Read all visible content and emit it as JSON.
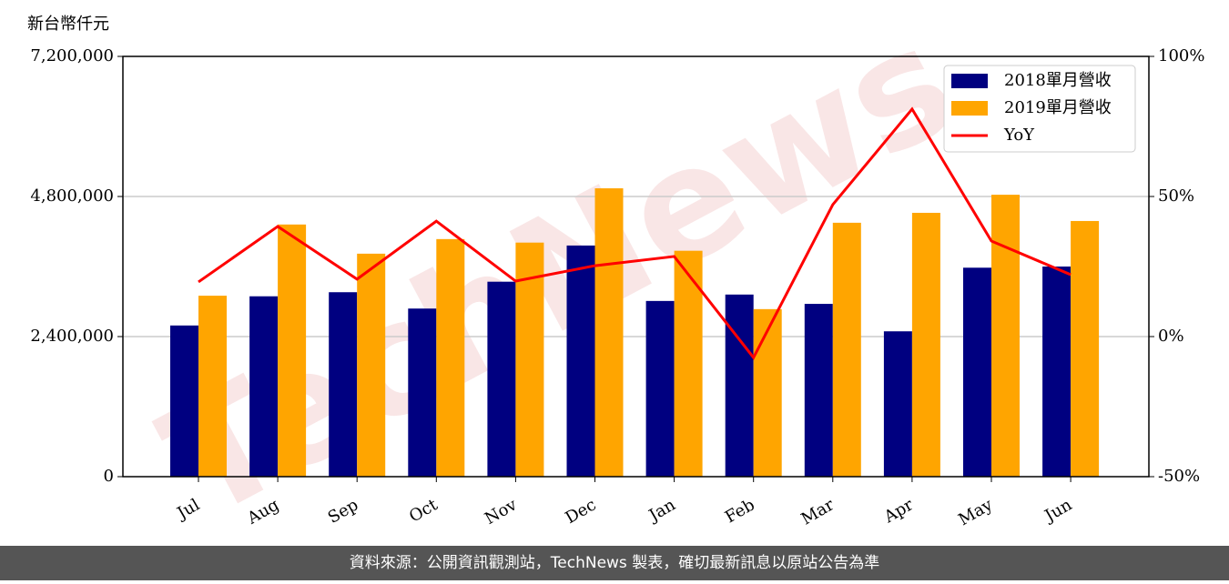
{
  "chart_data": {
    "type": "bar",
    "y_label": "新台幣仟元",
    "watermark": "TechNews",
    "footer": "資料來源：公開資訊觀測站，TechNews 製表，確切最新訊息以原站公告為準",
    "categories": [
      "Jul",
      "Aug",
      "Sep",
      "Oct",
      "Nov",
      "Dec",
      "Jan",
      "Feb",
      "Mar",
      "Apr",
      "May",
      "Jun"
    ],
    "series": [
      {
        "name": "2018單月營收",
        "type": "bar",
        "axis": "y",
        "color": "#000080",
        "values": [
          2590000,
          3090000,
          3160000,
          2880000,
          3340000,
          3960000,
          3010000,
          3120000,
          2960000,
          2490000,
          3580000,
          3600000
        ]
      },
      {
        "name": "2019單月營收",
        "type": "bar",
        "axis": "y",
        "color": "#ffa500",
        "values": [
          3100000,
          4320000,
          3820000,
          4070000,
          4010000,
          4940000,
          3870000,
          2870000,
          4350000,
          4520000,
          4830000,
          4380000
        ]
      },
      {
        "name": "YoY",
        "type": "line",
        "axis": "y2",
        "color": "#ff0000",
        "values": [
          19.5,
          39.3,
          20.5,
          41.2,
          19.8,
          25.3,
          28.6,
          -7.5,
          47.1,
          81.2,
          34.1,
          22.1
        ]
      }
    ],
    "ylim": [
      0,
      7200000
    ],
    "yticks": [
      0,
      {
        "value": 2400000,
        "label": "2,400,000"
      },
      {
        "value": 4800000,
        "label": "4,800,000"
      },
      {
        "value": 7200000,
        "label": "7,200,000"
      }
    ],
    "y2lim": [
      -50,
      100
    ],
    "y2ticks": [
      {
        "value": -50,
        "label": "-50%"
      },
      {
        "value": 0,
        "label": "0%"
      },
      {
        "value": 50,
        "label": "50%"
      },
      {
        "value": 100,
        "label": "100%"
      }
    ],
    "grid": true,
    "legend": "upper right"
  }
}
